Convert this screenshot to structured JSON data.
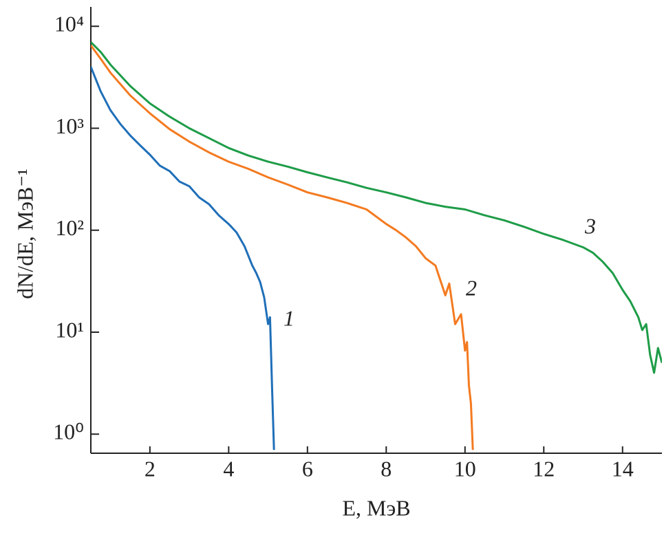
{
  "chart_data": {
    "type": "line",
    "x_label": "E, МэВ",
    "y_label": "dN/dE, МэВ⁻¹",
    "log_y": true,
    "xlim": [
      0.5,
      15
    ],
    "ylim": [
      0.65,
      15500
    ],
    "xticks": [
      2,
      4,
      6,
      8,
      10,
      12,
      14
    ],
    "yticks": [
      {
        "value": 1,
        "label": "10⁰"
      },
      {
        "value": 10,
        "label": "10¹"
      },
      {
        "value": 100,
        "label": "10²"
      },
      {
        "value": 1000,
        "label": "10³"
      },
      {
        "value": 10000,
        "label": "10⁴"
      }
    ],
    "series": [
      {
        "name": "1",
        "color": "#1f6fb8",
        "x": [
          0.5,
          0.75,
          1,
          1.25,
          1.5,
          1.75,
          2,
          2.25,
          2.5,
          2.75,
          3,
          3.25,
          3.5,
          3.75,
          4,
          4.2,
          4.4,
          4.6,
          4.7,
          4.8,
          4.9,
          5,
          5.05,
          5.1,
          5.15
        ],
        "values": [
          4000,
          2300,
          1500,
          1100,
          850,
          680,
          550,
          430,
          380,
          300,
          270,
          210,
          180,
          140,
          115,
          95,
          70,
          45,
          38,
          31,
          22,
          12,
          14,
          3,
          0.7
        ]
      },
      {
        "name": "2",
        "color": "#f47a20",
        "x": [
          0.5,
          0.75,
          1,
          1.5,
          2,
          2.5,
          3,
          3.5,
          4,
          4.5,
          5,
          5.5,
          6,
          6.5,
          7,
          7.5,
          8,
          8.25,
          8.5,
          8.75,
          9,
          9.25,
          9.5,
          9.6,
          9.75,
          9.9,
          10,
          10.05,
          10.1,
          10.15,
          10.2
        ],
        "values": [
          6500,
          4800,
          3500,
          2100,
          1400,
          980,
          740,
          580,
          470,
          400,
          330,
          280,
          235,
          210,
          185,
          160,
          115,
          100,
          85,
          70,
          53,
          45,
          23,
          30,
          12,
          15,
          6.6,
          8,
          3,
          2,
          0.7
        ]
      },
      {
        "name": "3",
        "color": "#1e9c48",
        "x": [
          0.5,
          0.75,
          1,
          1.5,
          2,
          2.5,
          3,
          3.5,
          4,
          4.5,
          5,
          5.5,
          6,
          6.5,
          7,
          7.5,
          8,
          8.5,
          9,
          9.5,
          10,
          10.5,
          11,
          11.5,
          12,
          12.5,
          13,
          13.25,
          13.5,
          13.75,
          14,
          14.2,
          14.4,
          14.5,
          14.6,
          14.7,
          14.8,
          14.9,
          15
        ],
        "values": [
          7000,
          5600,
          4200,
          2600,
          1750,
          1300,
          1000,
          800,
          640,
          540,
          470,
          420,
          370,
          330,
          295,
          260,
          235,
          210,
          185,
          170,
          160,
          140,
          125,
          108,
          92,
          80,
          68,
          60,
          49,
          38,
          26,
          20,
          14,
          10.5,
          12,
          6,
          4,
          7,
          5
        ]
      }
    ]
  }
}
